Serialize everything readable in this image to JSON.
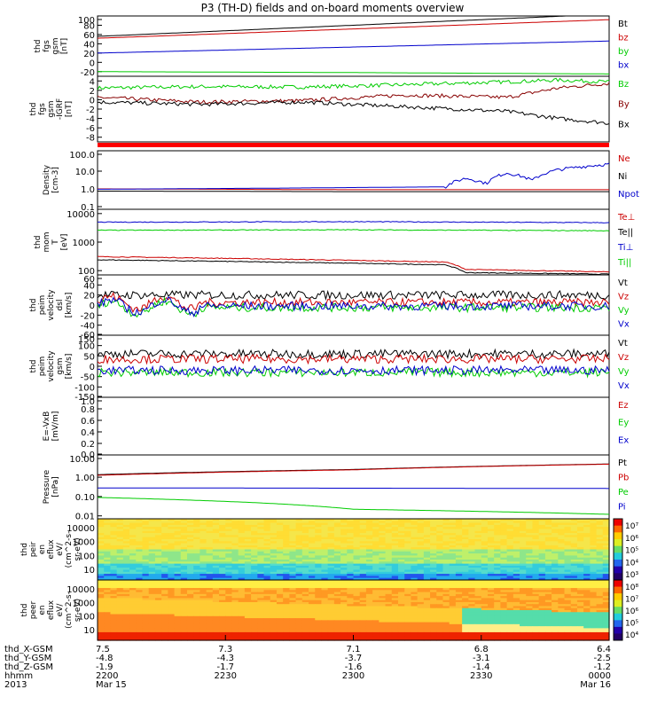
{
  "title": "P3 (TH-D) fields and on-board moments overview",
  "chart_data": [
    {
      "type": "line",
      "panel": "fgs",
      "ylabel": [
        "thd",
        "fgs",
        "gsm",
        "[nT]"
      ],
      "yticks": [
        "100",
        "80",
        "60",
        "40",
        "20",
        "0",
        "-20"
      ],
      "ylim": [
        -30,
        100
      ],
      "series": [
        {
          "name": "Bt",
          "color": "#000000",
          "x": [
            0,
            0.5,
            1
          ],
          "values": [
            56,
            80,
            104
          ]
        },
        {
          "name": "bz",
          "color": "#cc0000",
          "x": [
            0,
            0.5,
            1
          ],
          "values": [
            52,
            72,
            92
          ]
        },
        {
          "name": "by",
          "color": "#00cc00",
          "x": [
            0,
            0.5,
            1
          ],
          "values": [
            -20,
            -22,
            -25
          ]
        },
        {
          "name": "bx",
          "color": "#0000cc",
          "x": [
            0,
            0.5,
            1
          ],
          "values": [
            20,
            33,
            46
          ]
        }
      ]
    },
    {
      "type": "line",
      "panel": "fgs-dB",
      "ylabel": [
        "thd",
        "fgs",
        "gsm",
        "-IGRF",
        "[nT]"
      ],
      "yticks": [
        "4",
        "2",
        "0",
        "-2",
        "-4",
        "-6",
        "-8"
      ],
      "ylim": [
        -9,
        5
      ],
      "series": [
        {
          "name": "Bz",
          "color": "#00cc00",
          "x": [
            0,
            0.2,
            0.4,
            0.6,
            0.8,
            0.9,
            1
          ],
          "values": [
            2.5,
            2.8,
            2.7,
            3.2,
            3.8,
            4.2,
            3.8
          ]
        },
        {
          "name": "By",
          "color": "#880000",
          "x": [
            0,
            0.2,
            0.4,
            0.6,
            0.8,
            0.9,
            1
          ],
          "values": [
            0.5,
            -0.5,
            -0.2,
            1.0,
            0.5,
            2.5,
            3.5
          ]
        },
        {
          "name": "Bx",
          "color": "#000000",
          "x": [
            0,
            0.2,
            0.4,
            0.6,
            0.8,
            0.9,
            1
          ],
          "values": [
            -0.5,
            -1.0,
            -0.5,
            -1.5,
            -2.5,
            -4.0,
            -5.0
          ]
        }
      ]
    },
    {
      "type": "line",
      "panel": "density",
      "ylabel": [
        "Density",
        "[cm-3]"
      ],
      "yticks": [
        "100.0",
        "10.0",
        "1.0",
        "0.1"
      ],
      "log": true,
      "series": [
        {
          "name": "Ne",
          "color": "#cc0000",
          "x": [
            0,
            0.5,
            1
          ],
          "values": [
            1.0,
            0.9,
            0.9
          ]
        },
        {
          "name": "Ni",
          "color": "#000000",
          "x": [
            0,
            0.5,
            1
          ],
          "values": [
            0.75,
            0.7,
            0.7
          ]
        },
        {
          "name": "Npot",
          "color": "#0000cc",
          "x": [
            0,
            0.35,
            0.68,
            0.72,
            0.76,
            0.8,
            0.85,
            0.9,
            1
          ],
          "values": [
            0.95,
            1.1,
            1.3,
            4.0,
            2.0,
            8.0,
            3.0,
            12.0,
            25.0
          ]
        }
      ]
    },
    {
      "type": "line",
      "panel": "temperature",
      "ylabel": [
        "thd",
        "mom",
        "T",
        "[eV]"
      ],
      "yticks": [
        "10000",
        "1000",
        "100"
      ],
      "log": true,
      "series": [
        {
          "name": "Te⊥",
          "color": "#cc0000",
          "x": [
            0,
            0.68,
            0.72,
            1
          ],
          "values": [
            310,
            200,
            110,
            90
          ]
        },
        {
          "name": "Te||",
          "color": "#000000",
          "x": [
            0,
            0.68,
            0.72,
            1
          ],
          "values": [
            240,
            160,
            85,
            75
          ]
        },
        {
          "name": "Ti⊥",
          "color": "#0000cc",
          "x": [
            0,
            0.5,
            1
          ],
          "values": [
            5000,
            5200,
            4800
          ]
        },
        {
          "name": "Ti||",
          "color": "#00cc00",
          "x": [
            0,
            0.5,
            1
          ],
          "values": [
            2600,
            2700,
            2500
          ]
        }
      ]
    },
    {
      "type": "line",
      "panel": "peim-velocity-dsl",
      "ylabel": [
        "thd",
        "peim",
        "velocity",
        "dsl",
        "[km/s]"
      ],
      "yticks": [
        "60",
        "40",
        "20",
        "0",
        "-20",
        "-40",
        "-60"
      ],
      "ylim": [
        -60,
        60
      ],
      "series": [
        {
          "name": "Vt",
          "color": "#000000",
          "values": [
            20
          ]
        },
        {
          "name": "Vz",
          "color": "#cc0000",
          "values": [
            5
          ]
        },
        {
          "name": "Vy",
          "color": "#00cc00",
          "values": [
            -5
          ]
        },
        {
          "name": "Vx",
          "color": "#0000cc",
          "values": [
            -2
          ]
        }
      ]
    },
    {
      "type": "line",
      "panel": "peim-velocity-gsm",
      "ylabel": [
        "thd",
        "peim",
        "velocity",
        "gsm",
        "[km/s]"
      ],
      "yticks": [
        "150",
        "100",
        "50",
        "0",
        "-50",
        "-100",
        "-150"
      ],
      "ylim": [
        -150,
        150
      ],
      "series": [
        {
          "name": "Vt",
          "color": "#000000",
          "values": [
            60
          ]
        },
        {
          "name": "Vz",
          "color": "#cc0000",
          "values": [
            35
          ]
        },
        {
          "name": "Vy",
          "color": "#00cc00",
          "values": [
            -30
          ]
        },
        {
          "name": "Vx",
          "color": "#0000cc",
          "values": [
            -20
          ]
        }
      ]
    },
    {
      "type": "line",
      "panel": "efield",
      "ylabel": [
        "E=-VxB",
        "[mV/m]"
      ],
      "yticks": [
        "1.0",
        "0.8",
        "0.6",
        "0.4",
        "0.2",
        "0.0"
      ],
      "ylim": [
        0,
        1
      ],
      "series": [
        {
          "name": "Ez",
          "color": "#cc0000",
          "values": []
        },
        {
          "name": "Ey",
          "color": "#00cc00",
          "values": []
        },
        {
          "name": "Ex",
          "color": "#0000cc",
          "values": []
        }
      ]
    },
    {
      "type": "line",
      "panel": "pressure",
      "ylabel": [
        "Pressure",
        "[nPa]"
      ],
      "yticks": [
        "10.00",
        "1.00",
        "0.10",
        "0.01"
      ],
      "log": true,
      "series": [
        {
          "name": "Pt",
          "color": "#000000",
          "x": [
            0,
            0.5,
            1
          ],
          "values": [
            1.35,
            2.5,
            4.8
          ]
        },
        {
          "name": "Pb",
          "color": "#cc0000",
          "x": [
            0,
            0.5,
            1
          ],
          "values": [
            1.25,
            2.4,
            4.7
          ]
        },
        {
          "name": "Pe",
          "color": "#00cc00",
          "x": [
            0,
            0.5,
            1
          ],
          "values": [
            0.09,
            0.022,
            0.012
          ]
        },
        {
          "name": "Pi",
          "color": "#0000cc",
          "x": [
            0,
            0.5,
            1
          ],
          "values": [
            0.28,
            0.27,
            0.26
          ]
        }
      ]
    },
    {
      "type": "heatmap",
      "panel": "peir-en-eflux",
      "ylabel": [
        "thd",
        "peir",
        "en",
        "eflux",
        "eV/",
        "(cm^2-s-",
        "sr-eV)"
      ],
      "yticks": [
        "10000",
        "1000",
        "100",
        "10"
      ],
      "colorbar_ticks": [
        "10⁷",
        "10⁶",
        "10⁵",
        "10⁴",
        "10³"
      ]
    },
    {
      "type": "heatmap",
      "panel": "peer-en-eflux",
      "ylabel": [
        "thd",
        "peer",
        "en",
        "eflux",
        "eV/",
        "(cm^2-s-",
        "sr-eV)"
      ],
      "yticks": [
        "10000",
        "1000",
        "100",
        "10"
      ],
      "colorbar_ticks": [
        "10⁸",
        "10⁷",
        "10⁶",
        "10⁵",
        "10⁴"
      ]
    }
  ],
  "x_axis": {
    "row_labels": [
      "thd_X-GSM",
      "thd_Y-GSM",
      "thd_Z-GSM",
      "hhmm",
      "2013"
    ],
    "columns": [
      [
        "7.5",
        "-4.8",
        "-1.9",
        "2200",
        "Mar 15"
      ],
      [
        "7.3",
        "-4.3",
        "-1.7",
        "2230",
        ""
      ],
      [
        "7.1",
        "-3.7",
        "-1.6",
        "2300",
        ""
      ],
      [
        "6.8",
        "-3.1",
        "-1.4",
        "2330",
        ""
      ],
      [
        "6.4",
        "-2.5",
        "-1.2",
        "0000",
        "Mar 16"
      ]
    ]
  }
}
